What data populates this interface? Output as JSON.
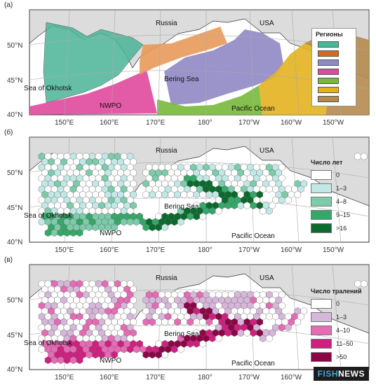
{
  "panels": [
    {
      "id": "a",
      "label": "(a)",
      "legend_title": "Регионы",
      "regions": [
        {
          "color": "#4bb598"
        },
        {
          "color": "#d96a1c"
        },
        {
          "color": "#8f88c4"
        },
        {
          "color": "#e0489c"
        },
        {
          "color": "#78b83a"
        },
        {
          "color": "#e3b21e"
        },
        {
          "color": "#b58a4e"
        }
      ]
    },
    {
      "id": "b",
      "label": "(б)",
      "legend_title": "Число лет",
      "classes": [
        {
          "label": "0",
          "color": "#ffffff"
        },
        {
          "label": "1–3",
          "color": "#c2e8e6"
        },
        {
          "label": "4–8",
          "color": "#7ccbaa"
        },
        {
          "label": "9–15",
          "color": "#35a869"
        },
        {
          "label": ">16",
          "color": "#0b6a2e"
        }
      ]
    },
    {
      "id": "c",
      "label": "(в)",
      "legend_title": "Число тралений",
      "classes": [
        {
          "label": "0",
          "color": "#ffffff"
        },
        {
          "label": "1–3",
          "color": "#d6b6d9"
        },
        {
          "label": "4–10",
          "color": "#e56bb5"
        },
        {
          "label": "11–50",
          "color": "#d11f7f"
        },
        {
          "label": ">50",
          "color": "#8a0646"
        }
      ]
    }
  ],
  "map_labels": {
    "russia": "Russia",
    "usa": "USA",
    "okhotsk": "Sea of Okhotsk",
    "nwpo": "NWPO",
    "bering": "Bering Sea",
    "pacific": "Pacific Ocean"
  },
  "lat_ticks": [
    "50°N",
    "45°N",
    "40°N"
  ],
  "lon_ticks": [
    "150°E",
    "160°E",
    "170°E",
    "180°",
    "170°W",
    "160°W",
    "150°W"
  ],
  "watermark": {
    "part1": "FISH",
    "part2": "NEWS"
  },
  "colors": {
    "land": "#dcdcdc",
    "ocean": "#ffffff",
    "coast": "#333333",
    "grid": "#aaaaaa"
  }
}
